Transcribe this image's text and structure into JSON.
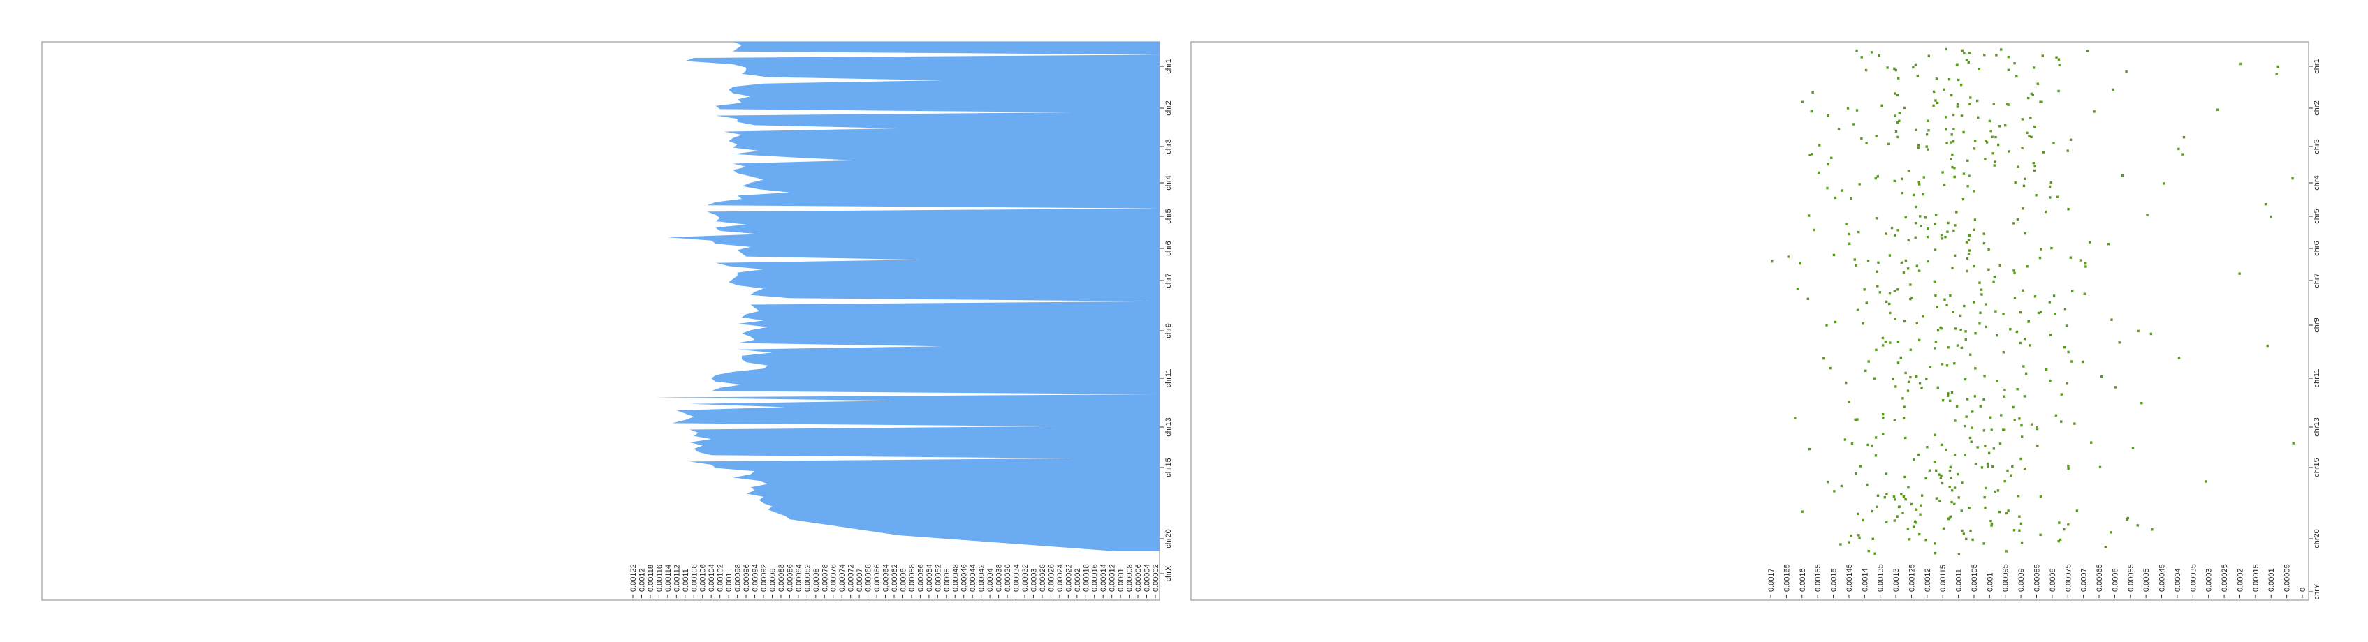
{
  "chart_data": [
    {
      "type": "area",
      "orientation": "horizontal",
      "axis": "reversed",
      "color": "#6aabf2",
      "y_labels": [
        "chr1",
        "chr2",
        "chr3",
        "chr4",
        "chr5",
        "chr6",
        "chr7",
        "chr9",
        "chr11",
        "chr13",
        "chr15",
        "chr20",
        "chrX"
      ],
      "x_ticks": [
        "0.00122",
        "0.0012",
        "0.00118",
        "0.00116",
        "0.00114",
        "0.00112",
        "0.0011",
        "0.00108",
        "0.00106",
        "0.00104",
        "0.00102",
        "0.001",
        "0.00098",
        "0.00096",
        "0.00094",
        "0.00092",
        "0.0009",
        "0.00088",
        "0.00086",
        "0.00084",
        "0.00082",
        "0.0008",
        "0.00078",
        "0.00076",
        "0.00074",
        "0.00072",
        "0.0007",
        "0.00068",
        "0.00066",
        "0.00064",
        "0.00062",
        "0.0006",
        "0.00058",
        "0.00056",
        "0.00054",
        "0.00052",
        "0.0005",
        "0.00048",
        "0.00046",
        "0.00044",
        "0.00042",
        "0.0004",
        "0.00038",
        "0.00036",
        "0.00034",
        "0.00032",
        "0.0003",
        "0.00028",
        "0.00026",
        "0.00024",
        "0.00022",
        "0.0002",
        "0.00018",
        "0.00016",
        "0.00014",
        "0.00012",
        "0.0001",
        "0.00008",
        "0.00006",
        "0.00004",
        "0.00002"
      ],
      "xlim": [
        0,
        0.00122
      ],
      "values": [
        0.00098,
        0.00096,
        0.00097,
        0.00098,
        0.0,
        0.00107,
        0.00109,
        0.00098,
        0.00095,
        0.00095,
        0.00096,
        0.0009,
        0.0005,
        0.00091,
        0.00098,
        0.00099,
        0.00098,
        0.00094,
        0.00097,
        0.00096,
        0.00102,
        0.00101,
        0.0002,
        0.00102,
        0.00097,
        0.00097,
        0.00093,
        0.0006,
        0.001,
        0.00096,
        0.00098,
        0.00099,
        0.00097,
        0.00098,
        0.00092,
        0.00098,
        0.00085,
        0.0007,
        0.00098,
        0.00095,
        0.00098,
        0.00097,
        0.00094,
        0.00091,
        0.00094,
        0.00096,
        0.00092,
        0.00085,
        0.00097,
        0.00096,
        0.00102,
        0.00104,
        0.0,
        0.00104,
        0.00102,
        0.00101,
        0.00102,
        0.00095,
        0.00102,
        0.00101,
        0.00092,
        0.00113,
        0.00103,
        0.00102,
        0.00094,
        0.00097,
        0.00096,
        0.00095,
        0.00055,
        0.00102,
        0.00099,
        0.00091,
        0.00097,
        0.00097,
        0.00098,
        0.00099,
        0.00097,
        0.00091,
        0.00093,
        0.00094,
        0.00085,
        2e-05,
        0.00094,
        0.00093,
        0.00092,
        0.00095,
        0.00096,
        0.00091,
        0.00097,
        0.0009,
        0.00094,
        0.00096,
        0.00094,
        0.00093,
        0.00097,
        0.0005,
        0.00097,
        0.00089,
        0.00096,
        0.00096,
        0.00095,
        0.0009,
        0.00091,
        0.00098,
        0.00102,
        0.00103,
        0.00102,
        0.00096,
        0.00101,
        0.00103,
        0.0,
        0.00116,
        0.00061,
        0.00108,
        0.00086,
        0.00111,
        0.00109,
        0.00107,
        0.00109,
        0.00112,
        0.00024,
        0.00108,
        0.00106,
        0.00107,
        0.00103,
        0.00108,
        0.00105,
        0.00107,
        0.00106,
        0.00103,
        0.0002,
        0.00108,
        0.00103,
        0.00102,
        0.00093,
        0.00094,
        0.00098,
        0.00092,
        0.0009,
        0.00094,
        0.00093,
        0.00095,
        0.00091,
        0.00092,
        0.00091,
        0.00089,
        0.0009,
        0.00088,
        0.00086,
        0.00085,
        0.0008,
        0.00075,
        0.0007,
        0.00065,
        0.0006,
        0.0005,
        0.0004,
        0.0003,
        0.0002,
        0.0001
      ]
    },
    {
      "type": "scatter",
      "orientation": "horizontal",
      "axis": "reversed",
      "color": "#5a9a1e",
      "y_labels": [
        "chr1",
        "chr2",
        "chr3",
        "chr4",
        "chr5",
        "chr6",
        "chr7",
        "chr9",
        "chr11",
        "chr13",
        "chr15",
        "chr20",
        "chrY"
      ],
      "x_ticks": [
        "0.0017",
        "0.00165",
        "0.0016",
        "0.00155",
        "0.0015",
        "0.00145",
        "0.0014",
        "0.00135",
        "0.0013",
        "0.00125",
        "0.0012",
        "0.00115",
        "0.0011",
        "0.00105",
        "0.001",
        "0.00095",
        "0.0009",
        "0.00085",
        "0.0008",
        "0.00075",
        "0.0007",
        "0.00065",
        "0.0006",
        "0.00055",
        "0.0005",
        "0.00045",
        "0.0004",
        "0.00035",
        "0.0003",
        "0.00025",
        "0.0002",
        "0.00015",
        "0.0001",
        "0.00005",
        "0"
      ],
      "xlim": [
        0,
        0.0017
      ]
    }
  ]
}
